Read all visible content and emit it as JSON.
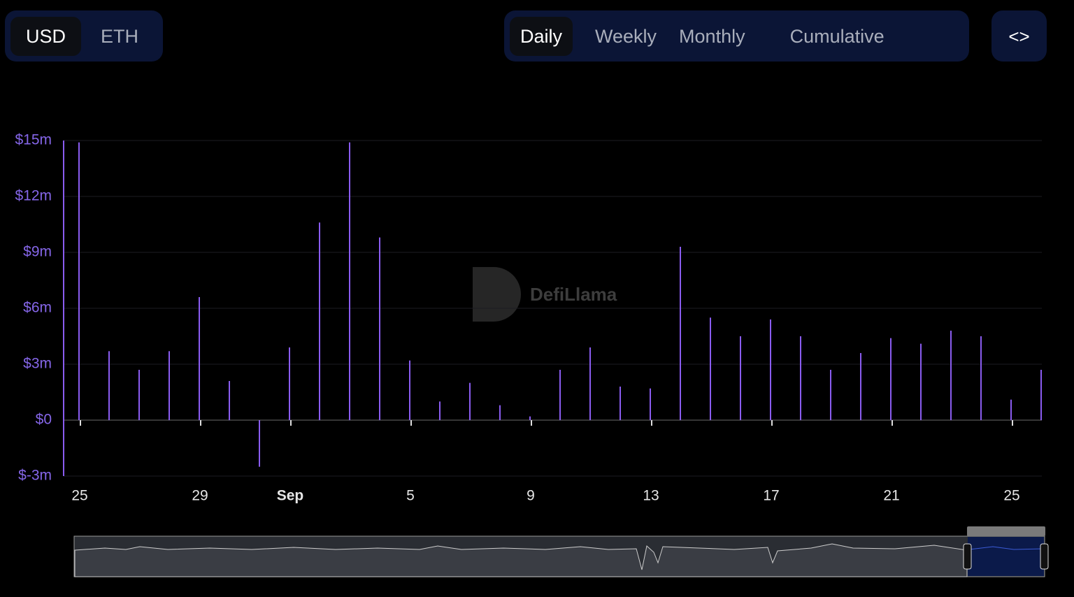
{
  "controls": {
    "currency": [
      "USD",
      "ETH"
    ],
    "periods": [
      "Daily",
      "Weekly",
      "Monthly",
      "Cumulative"
    ],
    "embed": "<>"
  },
  "watermark": "DefiLlama",
  "chart_data": {
    "type": "bar",
    "categories": [
      "25",
      null,
      null,
      null,
      "29",
      null,
      null,
      "Sep",
      null,
      null,
      null,
      "5",
      null,
      null,
      null,
      "9",
      null,
      null,
      null,
      "13",
      null,
      null,
      null,
      "17",
      null,
      null,
      null,
      "21",
      null,
      null,
      null,
      "25",
      null
    ],
    "values": [
      14900000,
      3700000,
      2700000,
      3700000,
      6600000,
      2100000,
      -2500000,
      3900000,
      10600000,
      14900000,
      9800000,
      3200000,
      1000000,
      2000000,
      800000,
      200000,
      2700000,
      3900000,
      1800000,
      1700000,
      9300000,
      5500000,
      4500000,
      5400000,
      4500000,
      2700000,
      3600000,
      4400000,
      4100000,
      4800000,
      4500000,
      1100000,
      2700000
    ],
    "color": "#8a5cf0",
    "ylim": [
      -3000000,
      15000000
    ],
    "yticks": [
      {
        "value": -3000000,
        "label": "$-3m"
      },
      {
        "value": 0,
        "label": "$0"
      },
      {
        "value": 3000000,
        "label": "$3m"
      },
      {
        "value": 6000000,
        "label": "$6m"
      },
      {
        "value": 9000000,
        "label": "$9m"
      },
      {
        "value": 12000000,
        "label": "$12m"
      },
      {
        "value": 15000000,
        "label": "$15m"
      }
    ],
    "grid": true
  }
}
